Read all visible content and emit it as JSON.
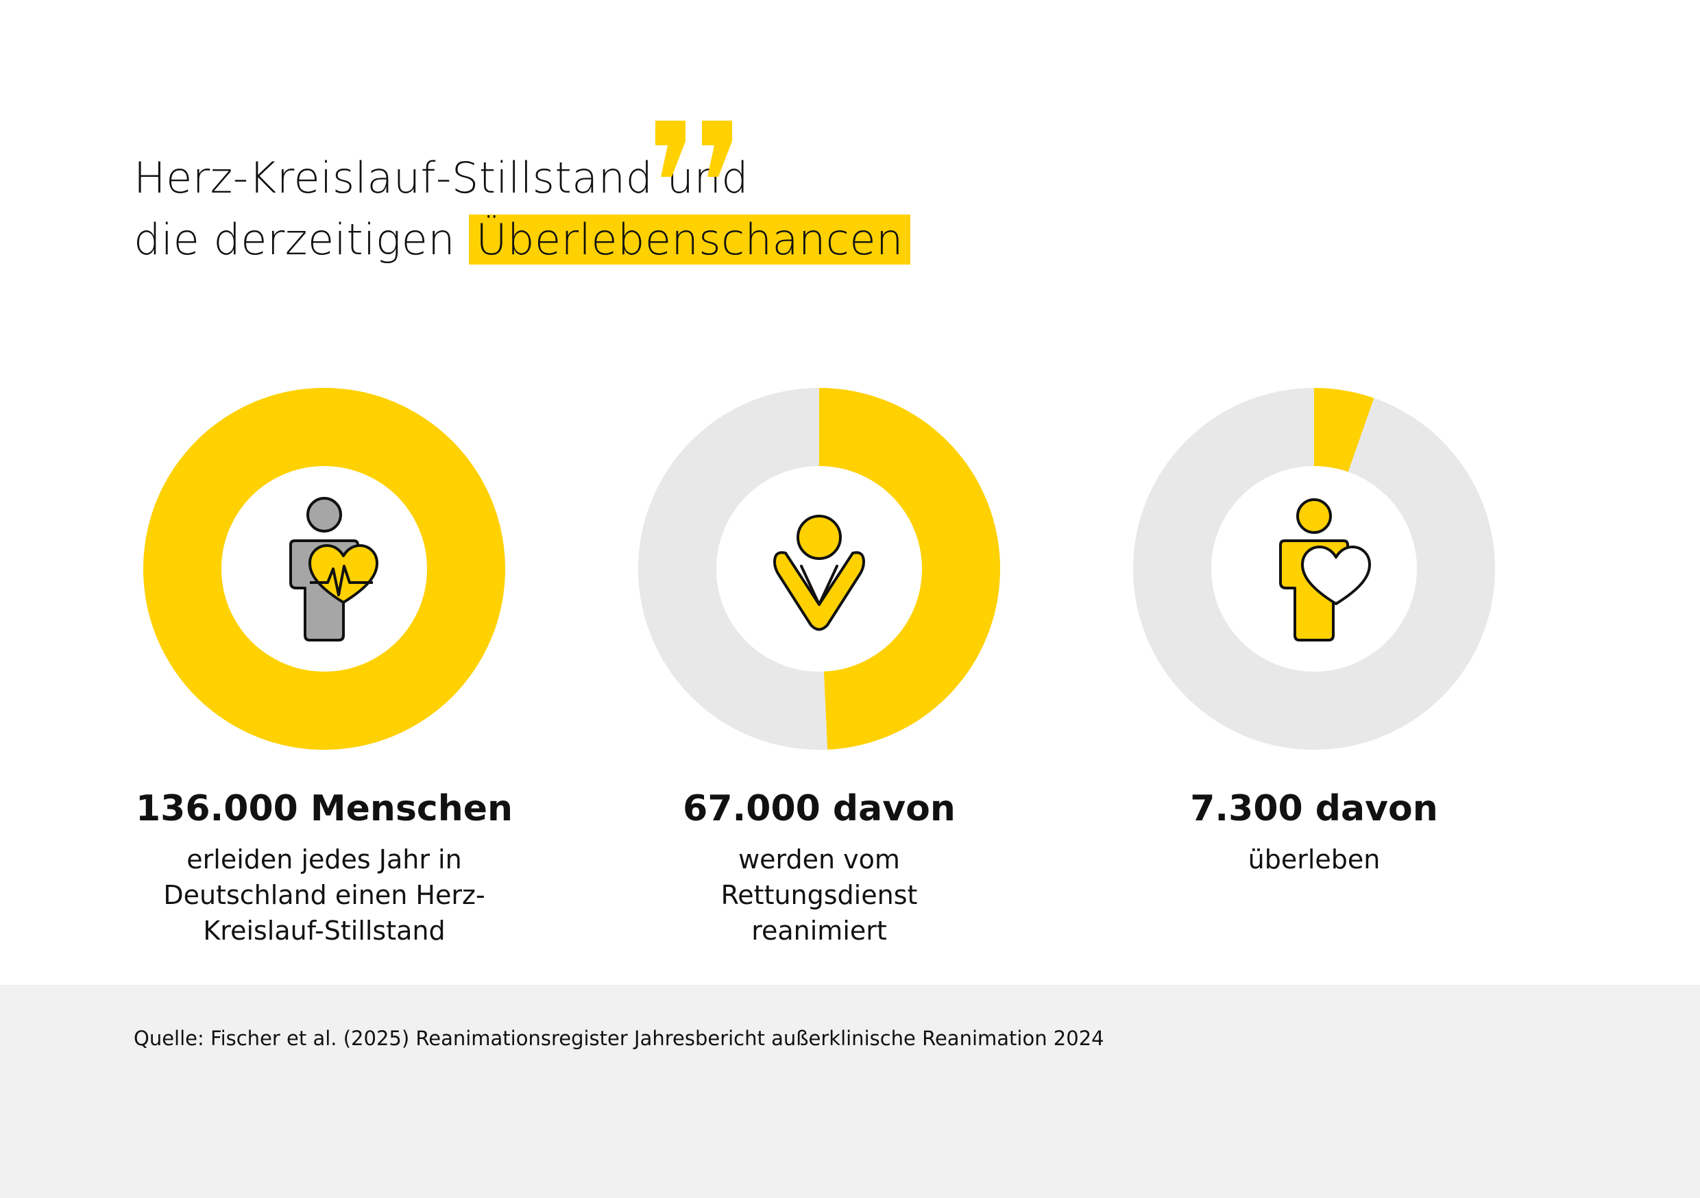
{
  "title": {
    "line1": "Herz-Kreislauf-Stillstand und",
    "line2_plain": "die derzeitigen",
    "line2_highlight": "Überlebenschancen"
  },
  "colors": {
    "accent": "#ffd100",
    "track": "#e8e8e8",
    "icon_gray": "#a6a6a6",
    "footer_bg": "#f1f1f1"
  },
  "chart_data": [
    {
      "type": "pie",
      "variant": "donut",
      "values": [
        136000
      ],
      "total": 136000,
      "fraction": 1.0,
      "icon": "person-heart-pulse-icon",
      "value_label": "136.000 Menschen",
      "description": [
        "erleiden jedes Jahr in",
        "Deutschland einen Herz-",
        "Kreislauf-Stillstand"
      ]
    },
    {
      "type": "pie",
      "variant": "donut",
      "values": [
        67000
      ],
      "total": 136000,
      "fraction": 0.4926,
      "icon": "cpr-rescuer-icon",
      "value_label": "67.000 davon",
      "description": [
        "werden vom",
        "Rettungsdienst",
        "reanimiert"
      ]
    },
    {
      "type": "pie",
      "variant": "donut",
      "values": [
        7300
      ],
      "total": 136000,
      "fraction": 0.0537,
      "icon": "person-heart-icon",
      "value_label": "7.300 davon",
      "description": [
        "überleben"
      ]
    }
  ],
  "source": "Quelle: Fischer et al. (2025) Reanimationsregister Jahresbericht außerklinische Reanimation 2024"
}
